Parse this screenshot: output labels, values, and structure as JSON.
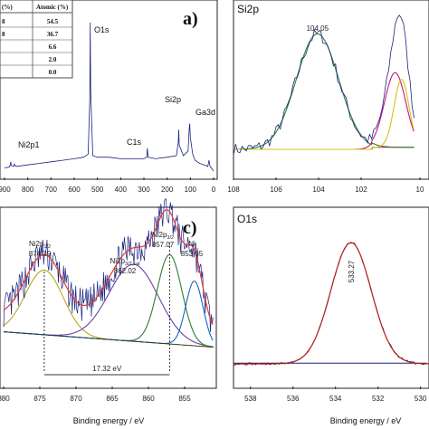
{
  "chart_data": [
    {
      "id": "a",
      "type": "line",
      "panel_letter": "a)",
      "xlim": [
        900,
        0
      ],
      "xticks": [
        "900",
        "800",
        "700",
        "600",
        "500",
        "400",
        "300",
        "200",
        "100",
        "0"
      ],
      "peak_labels": [
        {
          "text": "O1s",
          "x": 531
        },
        {
          "text": "Ni2p1",
          "x": 872
        },
        {
          "text": "C1s",
          "x": 285
        },
        {
          "text": "Si2p",
          "x": 103
        },
        {
          "text": "Ga3d",
          "x": 20
        }
      ],
      "table": {
        "headers": [
          "(%)",
          "Atomic (%)"
        ],
        "rows": [
          [
            "8",
            "54.5"
          ],
          [
            "8",
            "36.7"
          ],
          [
            "",
            "6.6"
          ],
          [
            "",
            "2.0"
          ],
          [
            "",
            "0.0"
          ]
        ]
      },
      "series": [
        {
          "x": [
            900,
            880,
            875,
            873,
            871,
            860,
            858,
            856,
            850,
            800,
            750,
            700,
            650,
            600,
            560,
            540,
            533,
            531,
            529,
            520,
            500,
            450,
            400,
            350,
            300,
            288,
            285,
            282,
            250,
            200,
            160,
            152,
            150,
            148,
            130,
            110,
            105,
            103,
            100,
            90,
            80,
            60,
            40,
            25,
            20,
            15,
            5,
            0
          ],
          "y": [
            0.05,
            0.055,
            0.07,
            0.09,
            0.065,
            0.06,
            0.075,
            0.07,
            0.06,
            0.07,
            0.08,
            0.09,
            0.1,
            0.11,
            0.12,
            0.14,
            0.5,
            1.0,
            0.55,
            0.13,
            0.12,
            0.12,
            0.11,
            0.11,
            0.11,
            0.12,
            0.18,
            0.12,
            0.11,
            0.12,
            0.13,
            0.22,
            0.3,
            0.2,
            0.13,
            0.16,
            0.3,
            0.34,
            0.25,
            0.14,
            0.1,
            0.08,
            0.07,
            0.06,
            0.1,
            0.06,
            0.04,
            0.03
          ]
        }
      ]
    },
    {
      "id": "b",
      "type": "line",
      "panel_title": "Si2p",
      "xlim": [
        108,
        98
      ],
      "xticks": [
        "108",
        "106",
        "104",
        "102",
        "10"
      ],
      "annotations": [
        {
          "text": "104.05",
          "x": 104.05
        }
      ],
      "series": [
        {
          "name": "raw",
          "color": "#1a237e",
          "x": [],
          "y": []
        },
        {
          "name": "peak-104",
          "color": "#2e7d32",
          "center": 104.05,
          "height": 0.85,
          "width": 1.0
        },
        {
          "name": "peak-100a",
          "color": "#c71585",
          "center": 100.4,
          "height": 0.55,
          "width": 0.5
        },
        {
          "name": "peak-100b",
          "color": "#d4c410",
          "center": 100.1,
          "height": 0.5,
          "width": 0.35
        },
        {
          "name": "background",
          "color": "#c71585"
        }
      ]
    },
    {
      "id": "c",
      "type": "line",
      "panel_letter": "c)",
      "xlim": [
        880,
        851
      ],
      "xticks": [
        "880",
        "875",
        "870",
        "865",
        "860",
        "855"
      ],
      "xlabel": "Binding energy / eV",
      "split_label": "17.32 eV",
      "peak_labels": [
        {
          "text": "Ni2p",
          "sub": "1/2",
          "value": "874.39",
          "x": 874.39
        },
        {
          "text": "Ni2p",
          "sub": "3/2,sat",
          "value": "862.02",
          "x": 862.02
        },
        {
          "text": "Ni2p",
          "sub": "3/2",
          "value": "857.07",
          "x": 857.07
        },
        {
          "text": "Ni",
          "value": "853.65",
          "x": 853.65
        }
      ],
      "series": [
        {
          "name": "peak-874",
          "color": "#b8a820",
          "center": 874.39,
          "height": 0.42,
          "width": 2.6
        },
        {
          "name": "peak-862",
          "color": "#6d3fa6",
          "center": 862.02,
          "height": 0.5,
          "width": 3.4
        },
        {
          "name": "peak-857",
          "color": "#2e7d32",
          "center": 857.07,
          "height": 0.58,
          "width": 1.7
        },
        {
          "name": "peak-853",
          "color": "#1565c0",
          "center": 853.65,
          "height": 0.42,
          "width": 1.2
        },
        {
          "name": "envelope",
          "color": "#e53935"
        }
      ]
    },
    {
      "id": "d",
      "type": "line",
      "panel_title": "O1s",
      "xlim": [
        538.8,
        529.6
      ],
      "xticks": [
        "538",
        "536",
        "534",
        "532",
        "530"
      ],
      "xlabel": "Binding energy / eV",
      "annotations": [
        {
          "text": "533.27",
          "x": 533.27
        }
      ],
      "series": [
        {
          "name": "fit",
          "color": "#b71c1c",
          "center": 533.27,
          "height": 1.0,
          "width": 0.95
        },
        {
          "name": "background",
          "color": "#1a237e"
        }
      ]
    }
  ]
}
